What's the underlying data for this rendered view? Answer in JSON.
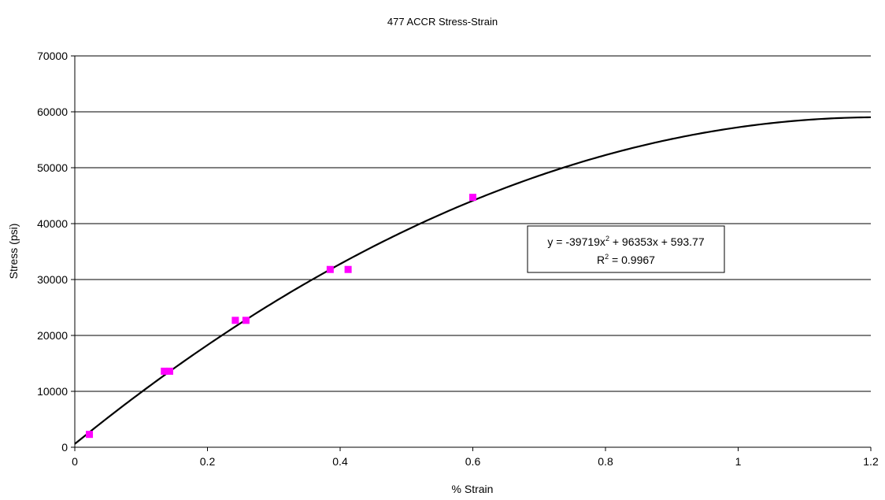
{
  "chart_data": {
    "type": "scatter",
    "title": "477 ACCR Stress-Strain",
    "xlabel": "% Strain",
    "ylabel": "Stress (psi)",
    "xlim": [
      0,
      1.2
    ],
    "ylim": [
      0,
      70000
    ],
    "x_ticks": [
      "0",
      "0.2",
      "0.4",
      "0.6",
      "0.8",
      "1",
      "1.2"
    ],
    "y_ticks": [
      "0",
      "10000",
      "20000",
      "30000",
      "40000",
      "50000",
      "60000",
      "70000"
    ],
    "grid": "horizontal",
    "legend": "none",
    "marker_color": "#ff00ff",
    "line_color": "#000000",
    "points": [
      {
        "x": 0.022,
        "y": 2300
      },
      {
        "x": 0.135,
        "y": 13600
      },
      {
        "x": 0.143,
        "y": 13600
      },
      {
        "x": 0.242,
        "y": 22700
      },
      {
        "x": 0.258,
        "y": 22700
      },
      {
        "x": 0.385,
        "y": 31800
      },
      {
        "x": 0.412,
        "y": 31800
      },
      {
        "x": 0.6,
        "y": 44700
      }
    ],
    "trendline": {
      "type": "polynomial",
      "coefficients": {
        "a": -39719,
        "b": 96353,
        "c": 593.77
      },
      "equation_text": {
        "pre": "y = -39719x",
        "sup": "2",
        "post": " + 96353x + 593.77"
      },
      "r2_text": {
        "pre": "R",
        "sup": "2",
        "post": " = 0.9967"
      }
    }
  }
}
